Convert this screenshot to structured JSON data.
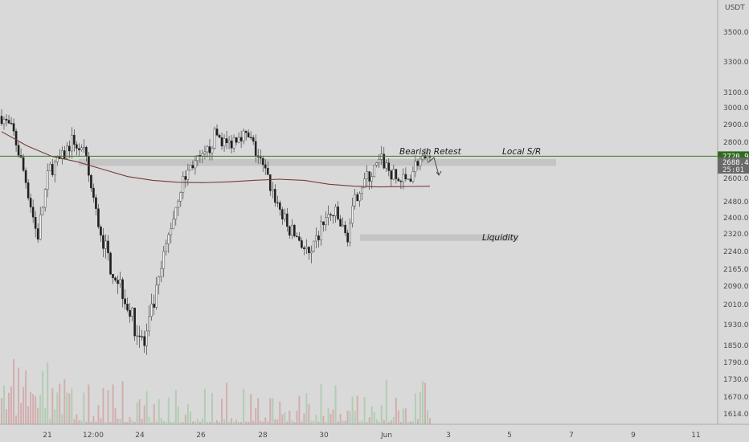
{
  "chart_data": {
    "type": "candlestick",
    "currency": "USDT",
    "y_axis": {
      "ticks": [
        3500,
        3300,
        3100,
        3000,
        2900,
        2800,
        2700,
        2600,
        2480,
        2400,
        2320,
        2240,
        2165,
        2090,
        2010,
        1930,
        1850,
        1790,
        1730,
        1670,
        1614
      ],
      "tick_labels": [
        "3500.00",
        "3300.00",
        "3100.00",
        "3000.00",
        "2900.00",
        "2800.00",
        "2700.00",
        "2600.00",
        "2480.00",
        "2400.00",
        "2320.00",
        "2240.00",
        "2165.00",
        "2090.00",
        "2010.00",
        "1930.00",
        "1850.00",
        "1790.00",
        "1730.00",
        "1670.00",
        "1614.00"
      ]
    },
    "x_axis": {
      "tick_labels": [
        "21",
        "12:00",
        "24",
        "26",
        "28",
        "30",
        "Jun",
        "3",
        "5",
        "7",
        "9",
        "11"
      ]
    },
    "price_tags": [
      {
        "value": "2720.94",
        "color": "#2e6b1f"
      },
      {
        "value": "2688.44",
        "sub": "25:01",
        "color": "#6a6a6a"
      }
    ],
    "horizontal_line": {
      "price": 2720.94,
      "color": "#3d7a2a"
    },
    "zones": [
      {
        "label": "Local S/R",
        "price_top": 2705,
        "price_bottom": 2668
      },
      {
        "label": "Liquidity",
        "price_top": 2318,
        "price_bottom": 2288
      }
    ],
    "annotations": [
      {
        "text": "Bearish Retest"
      },
      {
        "text": "Local S/R"
      },
      {
        "text": "Liquidity"
      }
    ],
    "close_path": [
      2950,
      2850,
      2600,
      2300,
      2650,
      2700,
      2820,
      2720,
      2400,
      2200,
      2100,
      1950,
      1850,
      2050,
      2300,
      2550,
      2680,
      2700,
      2850,
      2780,
      2860,
      2800,
      2650,
      2500,
      2350,
      2300,
      2200,
      2380,
      2420,
      2300,
      2550,
      2620,
      2700,
      2600,
      2580,
      2700,
      2680
    ],
    "moving_average": [
      2860,
      2780,
      2720,
      2690,
      2650,
      2610,
      2590,
      2580,
      2578,
      2582,
      2590,
      2596,
      2590,
      2570,
      2560,
      2556,
      2558,
      2560
    ],
    "colors": {
      "up": "#f2f2f2",
      "down": "#1e1e1e",
      "ma": "#7a3b3b",
      "line": "#3d7a2a",
      "zone": "#bfbfbf"
    }
  }
}
